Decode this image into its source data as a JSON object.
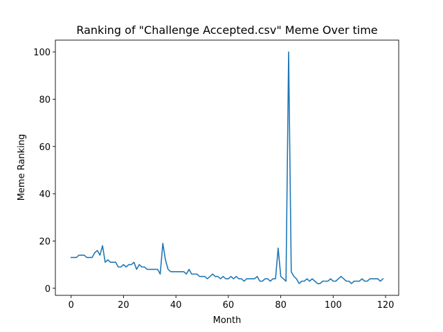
{
  "chart_data": {
    "type": "line",
    "title": "Ranking of \"Challenge Accepted.csv\" Meme Over time",
    "xlabel": "Month",
    "ylabel": "Meme Ranking",
    "xlim": [
      -6,
      125
    ],
    "ylim": [
      -3,
      105
    ],
    "xticks": [
      0,
      20,
      40,
      60,
      80,
      100,
      120
    ],
    "yticks": [
      0,
      20,
      40,
      60,
      80,
      100
    ],
    "grid": false,
    "series": [
      {
        "color": "#1f77b4",
        "x": [
          0,
          1,
          2,
          3,
          4,
          5,
          6,
          7,
          8,
          9,
          10,
          11,
          12,
          13,
          14,
          15,
          16,
          17,
          18,
          19,
          20,
          21,
          22,
          23,
          24,
          25,
          26,
          27,
          28,
          29,
          30,
          31,
          32,
          33,
          34,
          35,
          36,
          37,
          38,
          39,
          40,
          41,
          42,
          43,
          44,
          45,
          46,
          47,
          48,
          49,
          50,
          51,
          52,
          53,
          54,
          55,
          56,
          57,
          58,
          59,
          60,
          61,
          62,
          63,
          64,
          65,
          66,
          67,
          68,
          69,
          70,
          71,
          72,
          73,
          74,
          75,
          76,
          77,
          78,
          79,
          80,
          81,
          82,
          83,
          84,
          85,
          86,
          87,
          88,
          89,
          90,
          91,
          92,
          93,
          94,
          95,
          96,
          97,
          98,
          99,
          100,
          101,
          102,
          103,
          104,
          105,
          106,
          107,
          108,
          109,
          110,
          111,
          112,
          113,
          114,
          115,
          116,
          117,
          118,
          119
        ],
        "y": [
          13,
          13,
          13,
          14,
          14,
          14,
          13,
          13,
          13,
          15,
          16,
          14,
          18,
          11,
          12,
          11,
          11,
          11,
          9,
          9,
          10,
          9,
          10,
          10,
          11,
          8,
          10,
          9,
          9,
          8,
          8,
          8,
          8,
          8,
          6,
          19,
          12,
          8,
          7,
          7,
          7,
          7,
          7,
          7,
          6,
          8,
          6,
          6,
          6,
          5,
          5,
          5,
          4,
          5,
          6,
          5,
          5,
          4,
          5,
          4,
          4,
          5,
          4,
          5,
          4,
          4,
          3,
          4,
          4,
          4,
          4,
          5,
          3,
          3,
          4,
          4,
          3,
          4,
          4,
          17,
          5,
          4,
          3,
          100,
          7,
          5,
          4,
          2,
          3,
          3,
          4,
          3,
          4,
          3,
          2,
          2,
          3,
          3,
          3,
          4,
          3,
          3,
          4,
          5,
          4,
          3,
          3,
          2,
          3,
          3,
          3,
          4,
          3,
          3,
          4,
          4,
          4,
          4,
          3,
          4
        ]
      }
    ]
  }
}
